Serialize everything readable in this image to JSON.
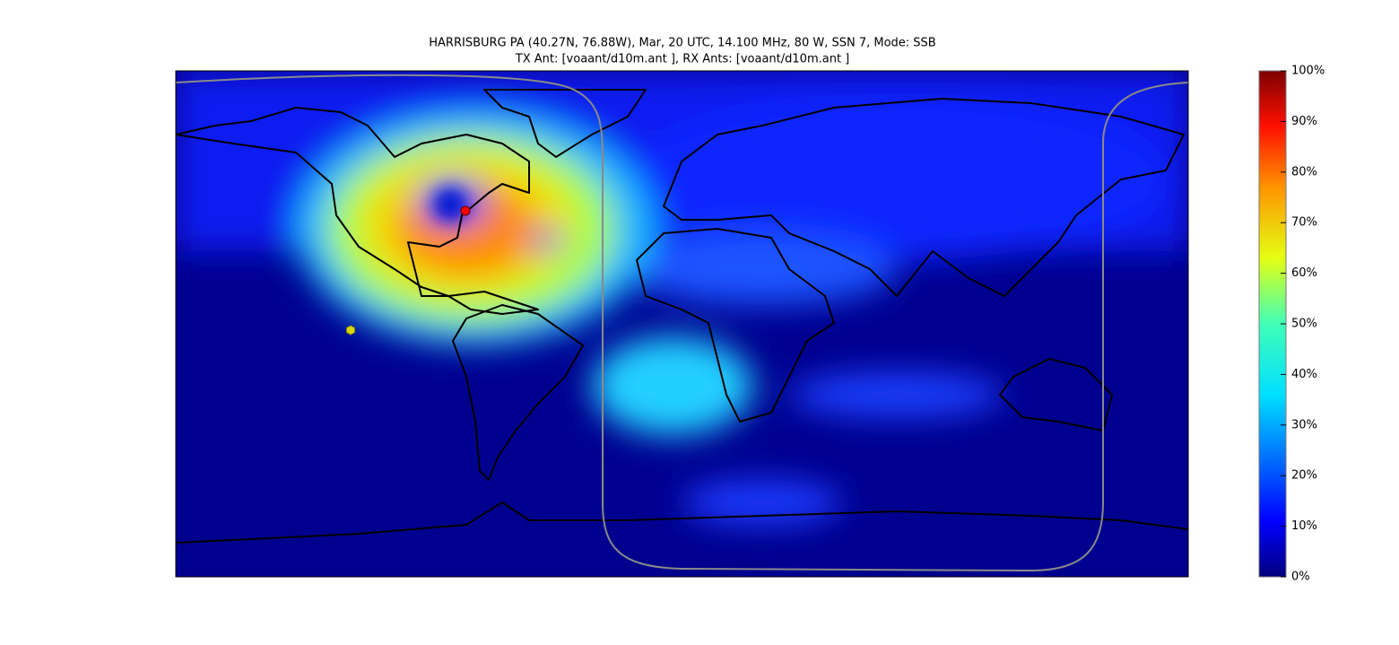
{
  "title": {
    "line1": "HARRISBURG PA (40.27N,  76.88W), Mar, 20 UTC, 14.100 MHz, 80 W, SSN 7, Mode: SSB",
    "line2": "TX Ant: [voaant/d10m.ant      ], RX Ants: [voaant/d10m.ant      ]"
  },
  "colorbar": {
    "lim": [
      0,
      100
    ],
    "ticks": [
      {
        "value": 0,
        "label": "0%"
      },
      {
        "value": 10,
        "label": "10%"
      },
      {
        "value": 20,
        "label": "20%"
      },
      {
        "value": 30,
        "label": "30%"
      },
      {
        "value": 40,
        "label": "40%"
      },
      {
        "value": 50,
        "label": "50%"
      },
      {
        "value": 60,
        "label": "60%"
      },
      {
        "value": 70,
        "label": "70%"
      },
      {
        "value": 80,
        "label": "80%"
      },
      {
        "value": 90,
        "label": "90%"
      },
      {
        "value": 100,
        "label": "100%"
      }
    ]
  }
}
